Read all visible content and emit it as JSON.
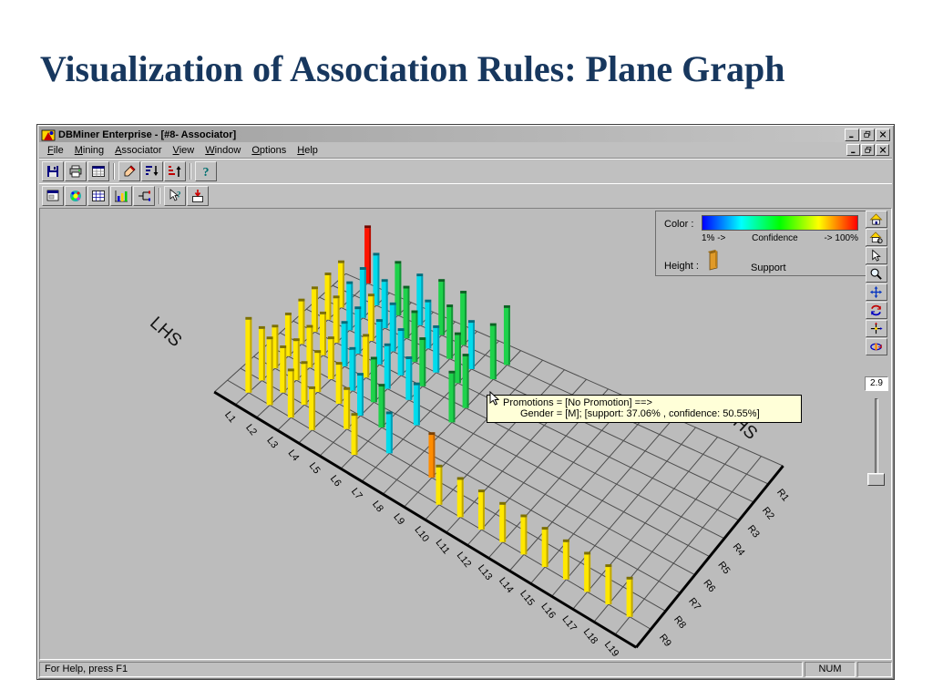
{
  "slide": {
    "title": "Visualization of Association Rules: Plane Graph"
  },
  "window": {
    "title": "DBMiner Enterprise - [#8- Associator]",
    "menu": [
      "File",
      "Mining",
      "Associator",
      "View",
      "Window",
      "Options",
      "Help"
    ],
    "toolbar_main": [
      [
        "save",
        "print",
        "table"
      ],
      [
        "brush",
        "sort-asc",
        "sort-desc"
      ],
      [
        "help"
      ]
    ],
    "toolbar_view": [
      [
        "form",
        "palette",
        "grid",
        "chart",
        "branch"
      ],
      [
        "context-help",
        "export"
      ]
    ],
    "side_tools": [
      "home",
      "home-zoom",
      "select",
      "zoom",
      "pan",
      "rotate",
      "move-axes",
      "spin"
    ],
    "status": {
      "help": "For Help, press F1",
      "num": "NUM"
    }
  },
  "legend": {
    "color_label": "Color :",
    "scale_min": "1% ->",
    "scale_label": "Confidence",
    "scale_max": "-> 100%",
    "height_label": "Height :",
    "height_value": "Support"
  },
  "tooltip": {
    "line1": "Promotions = [No Promotion] ==>",
    "line2": "Gender = [M]; [support: 37.06% , confidence: 50.55%]"
  },
  "slider": {
    "value": "2.9"
  },
  "chart_data": {
    "type": "3d-bar-grid",
    "lhs_title": "LHS",
    "rhs_title": "RHS",
    "lhs_ticks": [
      "L1",
      "L2",
      "L3",
      "L4",
      "L5",
      "L6",
      "L7",
      "L8",
      "L9",
      "L10",
      "L11",
      "L12",
      "L13",
      "L14",
      "L15",
      "L16",
      "L17",
      "L18",
      "L19"
    ],
    "rhs_ticks": [
      "R1",
      "R2",
      "R3",
      "R4",
      "R5",
      "R6",
      "R7",
      "R8",
      "R9"
    ],
    "color_encodes": "Confidence (1% blue to 100% red)",
    "height_encodes": "Support",
    "highlighted_rule": {
      "lhs": "Promotions = [No Promotion]",
      "rhs": "Gender = [M]",
      "support_pct": 37.06,
      "confidence_pct": 50.55
    },
    "grid_color": "#4c4c4c",
    "plane": {
      "a": [
        192,
        206
      ],
      "b": [
        337,
        73
      ],
      "c": [
        819,
        289
      ],
      "d": [
        657,
        493
      ],
      "cols": 20,
      "rows": 10
    },
    "palette": {
      "Y": {
        "f": "#ffe800",
        "s": "#bfa600",
        "t": "#7d7000"
      },
      "C": {
        "f": "#00dcec",
        "s": "#009cb4",
        "t": "#006e7d"
      },
      "G": {
        "f": "#1ed24b",
        "s": "#129636",
        "t": "#0b6323"
      },
      "R": {
        "f": "#ff1400",
        "s": "#b80e00",
        "t": "#700800"
      },
      "O": {
        "f": "#ff8c00",
        "s": "#c26400",
        "t": "#7d4000"
      }
    },
    "bars": [
      [
        1,
        0,
        "R",
        62
      ],
      [
        2,
        1,
        "C",
        56
      ],
      [
        3,
        1,
        "G",
        58
      ],
      [
        4,
        1,
        "C",
        55
      ],
      [
        5,
        1,
        "G",
        60
      ],
      [
        6,
        1,
        "G",
        58
      ],
      [
        8,
        1,
        "G",
        64
      ],
      [
        1,
        2,
        "Y",
        50
      ],
      [
        2,
        2,
        "C",
        54
      ],
      [
        3,
        2,
        "C",
        52
      ],
      [
        4,
        2,
        "G",
        56
      ],
      [
        5,
        2,
        "C",
        52
      ],
      [
        6,
        2,
        "G",
        58
      ],
      [
        7,
        2,
        "C",
        52
      ],
      [
        8,
        2,
        "G",
        60
      ],
      [
        1,
        3,
        "Y",
        50
      ],
      [
        2,
        3,
        "C",
        52
      ],
      [
        3,
        3,
        "Y",
        50
      ],
      [
        4,
        3,
        "C",
        52
      ],
      [
        5,
        3,
        "G",
        55
      ],
      [
        6,
        3,
        "C",
        50
      ],
      [
        7,
        3,
        "G",
        54
      ],
      [
        1,
        4,
        "Y",
        48
      ],
      [
        2,
        4,
        "Y",
        50
      ],
      [
        3,
        4,
        "C",
        50
      ],
      [
        4,
        4,
        "C",
        48
      ],
      [
        5,
        4,
        "C",
        50
      ],
      [
        6,
        4,
        "G",
        52
      ],
      [
        8,
        4,
        "G",
        58
      ],
      [
        1,
        5,
        "Y",
        48
      ],
      [
        2,
        5,
        "Y",
        46
      ],
      [
        3,
        5,
        "C",
        48
      ],
      [
        4,
        5,
        "Y",
        46
      ],
      [
        5,
        5,
        "C",
        48
      ],
      [
        6,
        5,
        "C",
        46
      ],
      [
        8,
        5,
        "G",
        55
      ],
      [
        1,
        6,
        "Y",
        46
      ],
      [
        2,
        6,
        "Y",
        45
      ],
      [
        3,
        6,
        "Y",
        45
      ],
      [
        4,
        6,
        "C",
        46
      ],
      [
        5,
        6,
        "G",
        48
      ],
      [
        7,
        6,
        "C",
        45
      ],
      [
        1,
        7,
        "Y",
        46
      ],
      [
        2,
        7,
        "Y",
        44
      ],
      [
        3,
        7,
        "Y",
        44
      ],
      [
        4,
        7,
        "Y",
        44
      ],
      [
        5,
        7,
        "C",
        45
      ],
      [
        6,
        7,
        "G",
        46
      ],
      [
        1,
        8,
        "Y",
        58
      ],
      [
        2,
        8,
        "Y",
        50
      ],
      [
        3,
        8,
        "Y",
        46
      ],
      [
        5,
        8,
        "Y",
        44
      ],
      [
        7,
        8,
        "C",
        44
      ],
      [
        9,
        8,
        "O",
        48
      ],
      [
        1,
        9,
        "Y",
        82
      ],
      [
        2,
        9,
        "Y",
        74
      ],
      [
        3,
        9,
        "Y",
        52
      ],
      [
        4,
        9,
        "Y",
        46
      ],
      [
        6,
        9,
        "Y",
        44
      ],
      [
        10,
        9,
        "Y",
        42
      ],
      [
        11,
        9,
        "Y",
        42
      ],
      [
        12,
        9,
        "Y",
        42
      ],
      [
        13,
        9,
        "Y",
        42
      ],
      [
        14,
        9,
        "Y",
        42
      ],
      [
        15,
        9,
        "Y",
        42
      ],
      [
        16,
        9,
        "Y",
        42
      ],
      [
        17,
        9,
        "Y",
        42
      ],
      [
        18,
        9,
        "Y",
        42
      ],
      [
        19,
        9,
        "Y",
        42
      ]
    ]
  }
}
